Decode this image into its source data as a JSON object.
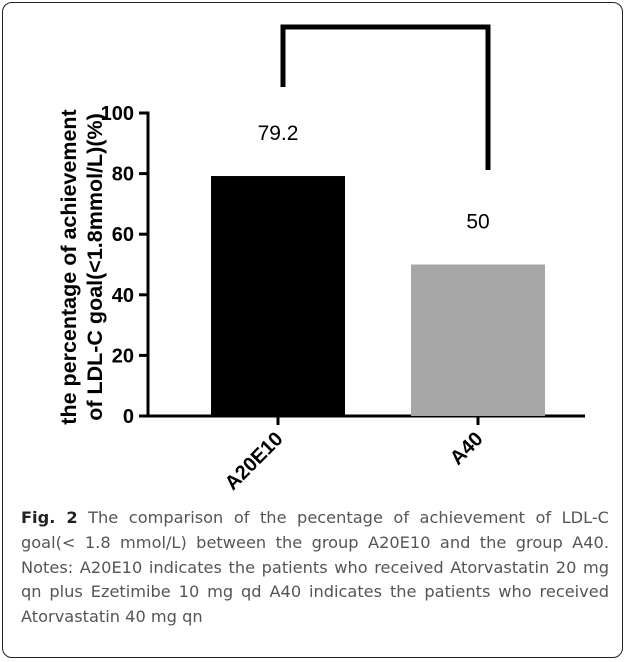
{
  "chart_data": {
    "type": "bar",
    "categories": [
      "A20E10",
      "A40"
    ],
    "values": [
      79.2,
      50
    ],
    "value_labels": [
      "79.2",
      "50"
    ],
    "bar_colors": [
      "#000000",
      "#a6a6a6"
    ],
    "title": "",
    "xlabel": "",
    "ylabel_lines": [
      "the percentage of achievement",
      "of LDL-C goal(<1.8mmol/L)(%)"
    ],
    "ylim": [
      0,
      100
    ],
    "yticks": [
      0,
      20,
      40,
      60,
      80,
      100
    ],
    "grid": false,
    "legend": "none",
    "significance_bracket": {
      "between": [
        "A20E10",
        "A40"
      ]
    }
  },
  "caption": {
    "label": "Fig. 2",
    "text": "The comparison of the pecentage of achievement of LDL-C goal(< 1.8 mmol/L) between the group A20E10 and the group A40. Notes: A20E10 indicates the patients who received Atorvastatin 20 mg qn plus Ezetimibe 10 mg qd A40 indicates the patients who received Atorvastatin 40 mg qn"
  }
}
